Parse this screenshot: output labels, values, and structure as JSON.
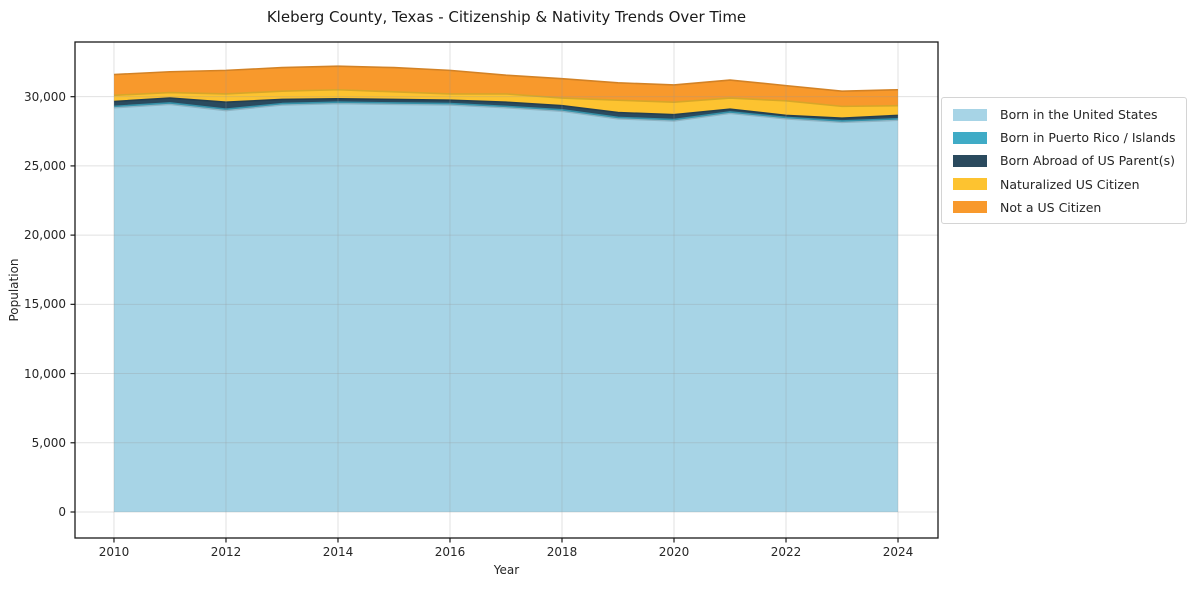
{
  "chart_data": {
    "type": "area",
    "stacked": true,
    "title": "Kleberg County, Texas - Citizenship & Nativity Trends Over Time",
    "xlabel": "Year",
    "ylabel": "Population",
    "x": [
      2010,
      2011,
      2012,
      2013,
      2014,
      2015,
      2016,
      2017,
      2018,
      2019,
      2020,
      2021,
      2022,
      2023,
      2024
    ],
    "series": [
      {
        "name": "Born in the United States",
        "color": "#a7d4e6",
        "values": [
          29200,
          29450,
          29000,
          29400,
          29500,
          29450,
          29400,
          29200,
          28950,
          28400,
          28250,
          28800,
          28400,
          28150,
          28300
        ]
      },
      {
        "name": "Born in Puerto Rico / Islands",
        "color": "#3fabc6",
        "values": [
          100,
          100,
          100,
          100,
          100,
          100,
          100,
          100,
          100,
          100,
          100,
          100,
          100,
          100,
          100
        ]
      },
      {
        "name": "Born Abroad of US Parent(s)",
        "color": "#2a4a5e",
        "values": [
          350,
          350,
          500,
          300,
          250,
          250,
          250,
          300,
          300,
          350,
          350,
          200,
          150,
          200,
          250
        ]
      },
      {
        "name": "Naturalized US Citizen",
        "color": "#fdc330",
        "values": [
          450,
          400,
          600,
          600,
          650,
          550,
          450,
          600,
          550,
          900,
          900,
          800,
          1050,
          850,
          700
        ]
      },
      {
        "name": "Not a US Citizen",
        "color": "#f8992c",
        "values": [
          1500,
          1500,
          1700,
          1700,
          1700,
          1750,
          1700,
          1350,
          1400,
          1250,
          1250,
          1300,
          1100,
          1100,
          1150
        ]
      }
    ],
    "totals": [
      31600,
      31800,
      31900,
      32100,
      32200,
      32100,
      31900,
      31550,
      31300,
      31000,
      30850,
      31200,
      30800,
      30400,
      30500
    ],
    "xlim": [
      2009.304,
      2024.714
    ],
    "ylim": [
      -1878,
      33950
    ],
    "xticks": {
      "values": [
        2010,
        2012,
        2014,
        2016,
        2018,
        2020,
        2022,
        2024
      ],
      "labels": [
        "2010",
        "2012",
        "2014",
        "2016",
        "2018",
        "2020",
        "2022",
        "2024"
      ]
    },
    "yticks": {
      "values": [
        0,
        5000,
        10000,
        15000,
        20000,
        25000,
        30000
      ],
      "labels": [
        "0",
        "5,000",
        "10,000",
        "15,000",
        "20,000",
        "25,000",
        "30,000"
      ]
    },
    "grid": true,
    "legend_position": "right",
    "colors": {
      "grid": "#969696",
      "spine": "#1a1a1a",
      "text": "#262626",
      "background": "#ffffff"
    }
  }
}
